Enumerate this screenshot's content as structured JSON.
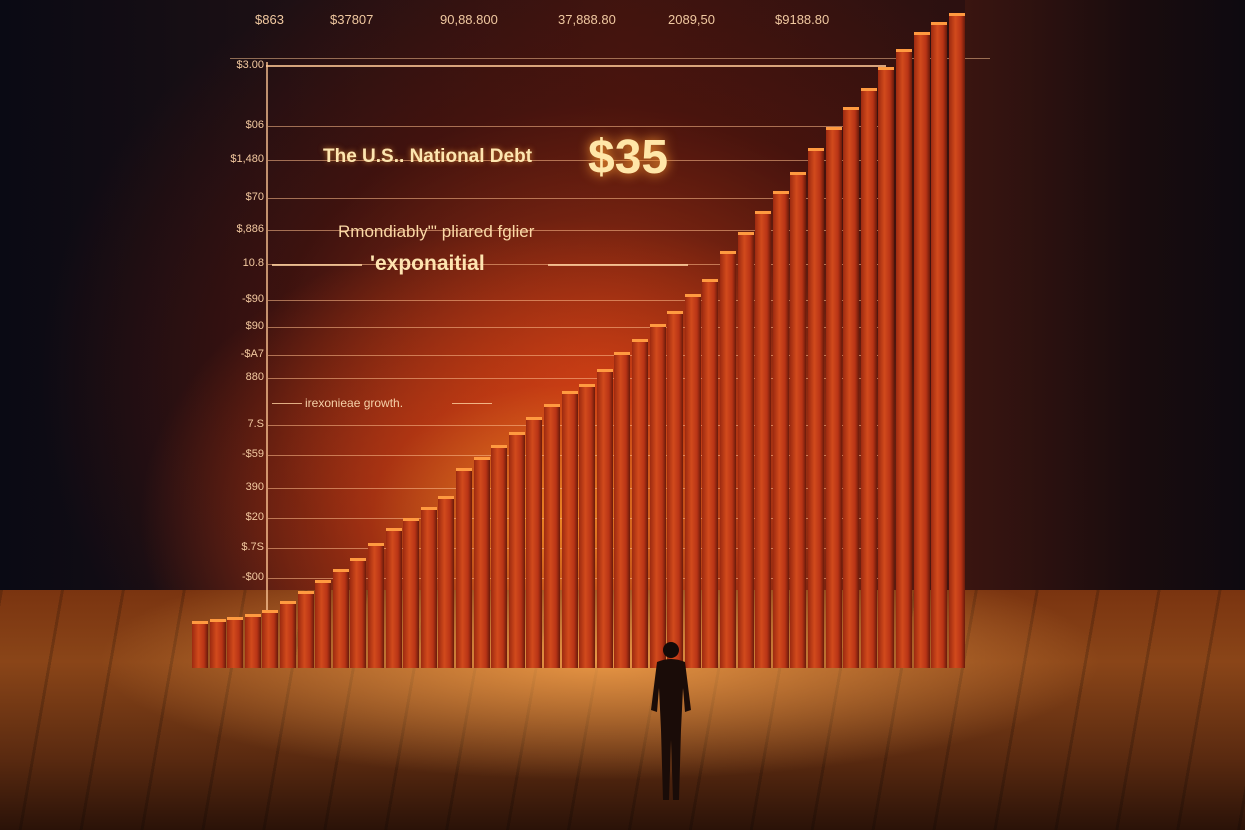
{
  "chart_data": {
    "type": "bar",
    "title": "The U.S.. National Debt",
    "headline_value": "$35",
    "annotations": [
      "Rmondiably\"' pliared fglier",
      "'exponaitial",
      "irexonieae growth."
    ],
    "x_tick_labels": [
      "$863",
      "$37807",
      "90,88.800",
      "37,888.80",
      "2089,50",
      "$9188.80"
    ],
    "y_tick_labels": [
      "$3.00",
      "$06",
      "$1,480",
      "$70",
      "$,886",
      "10.8",
      "-$90",
      "$90",
      "-$A7",
      "880",
      "7.S",
      "-$59",
      "390",
      "$20",
      "$.7S",
      "-$00"
    ],
    "values": [
      2.5,
      2.6,
      2.7,
      2.9,
      3.1,
      3.6,
      4.1,
      4.7,
      5.3,
      5.9,
      6.7,
      7.5,
      8.0,
      8.6,
      9.2,
      10.7,
      11.3,
      11.9,
      12.6,
      13.4,
      14.1,
      14.8,
      15.2,
      16.0,
      16.9,
      17.6,
      18.4,
      19.1,
      20.0,
      20.8,
      22.3,
      23.3,
      24.4,
      25.5,
      26.5,
      27.8,
      28.9,
      30.0,
      31.0,
      32.1,
      33.1,
      34.0,
      34.5,
      35.0
    ],
    "ylim": [
      0,
      35
    ],
    "grid": true,
    "bar_color": "#c8401a",
    "glow_color": "#ff9a40"
  }
}
